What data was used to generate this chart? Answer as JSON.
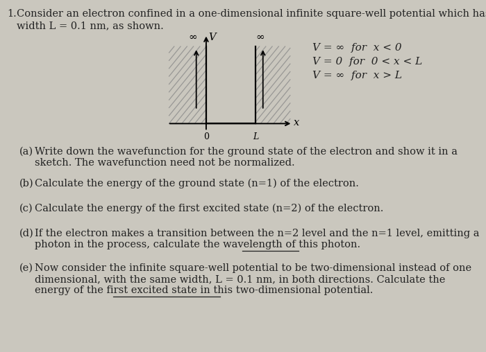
{
  "bg_color": "#cac7be",
  "font_size": 10.5,
  "eq1": "V = ∞  for  x < 0",
  "eq2": "V = 0  for  0 < x < L",
  "eq3": "V = ∞  for  x > L",
  "line1": "Consider an electron confined in a one-dimensional infinite square-well potential which has a",
  "line2": "width L = 0.1 nm, as shown.",
  "pa1": "Write down the wavefunction for the ground state of the electron and show it in a",
  "pa2": "sketch. The wavefunction need not be normalized.",
  "pb1": "Calculate the energy of the ground state (n=1) of the electron.",
  "pc1": "Calculate the energy of the first excited state (n=2) of the electron.",
  "pd1": "If the electron makes a transition between the n=2 level and the n=1 level, emitting a",
  "pd2_pre": "photon in the process, calculate the ",
  "pd2_ul": "wavelength",
  "pd2_post": " of this photon.",
  "pe1": "Now consider the infinite square-well potential to be two-dimensional instead of one",
  "pe2": "dimensional, with the same width, L = 0.1 nm, in both directions. Calculate the",
  "pe3_pre": "energy of the ",
  "pe3_ul": "first excited state",
  "pe3_post": " in this two-dimensional potential."
}
